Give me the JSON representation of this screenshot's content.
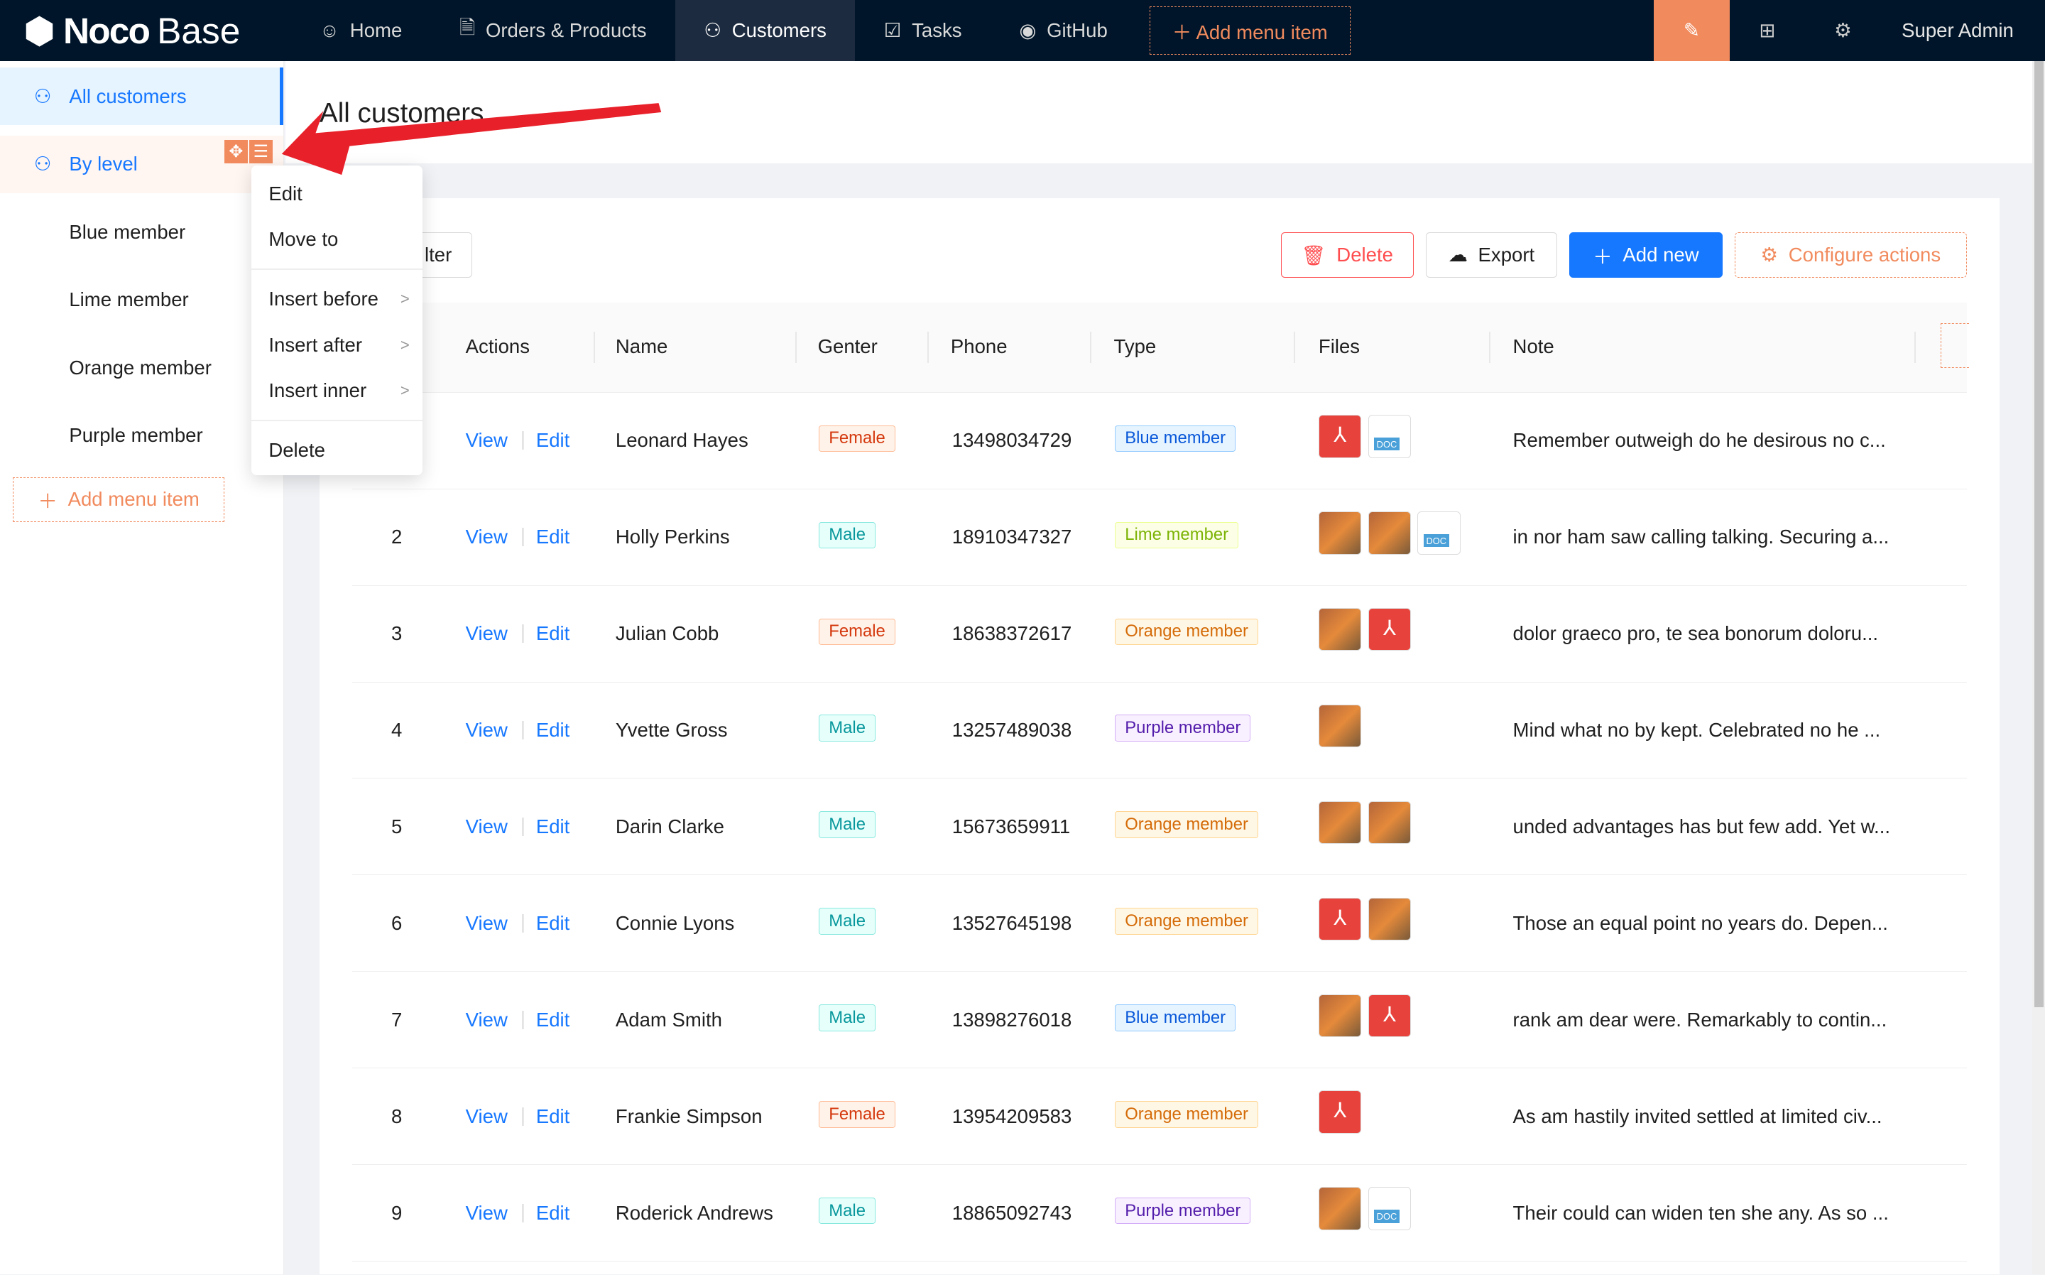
{
  "header": {
    "logo": {
      "bold": "Noco",
      "light": "Base"
    },
    "nav": [
      {
        "label": "Home",
        "icon": "smile-icon"
      },
      {
        "label": "Orders & Products",
        "icon": "file-check-icon"
      },
      {
        "label": "Customers",
        "icon": "user-icon",
        "active": true
      },
      {
        "label": "Tasks",
        "icon": "checkbox-icon"
      },
      {
        "label": "GitHub",
        "icon": "github-icon"
      }
    ],
    "add_menu_item": "Add menu item",
    "user": "Super Admin"
  },
  "sidebar": {
    "items": [
      {
        "label": "All customers",
        "active": true
      },
      {
        "label": "By level"
      },
      {
        "label": "Blue member"
      },
      {
        "label": "Lime member"
      },
      {
        "label": "Orange member"
      },
      {
        "label": "Purple member"
      }
    ],
    "add_menu_item": "Add menu item"
  },
  "context_menu": {
    "items": [
      "Edit",
      "Move to",
      "Insert before",
      "Insert after",
      "Insert inner",
      "Delete"
    ]
  },
  "page": {
    "title": "All customers"
  },
  "toolbar": {
    "filter": "lter",
    "delete": "Delete",
    "export": "Export",
    "add_new": "Add new",
    "configure": "Configure actions"
  },
  "table": {
    "columns": [
      "Actions",
      "Name",
      "Genter",
      "Phone",
      "Type",
      "Files",
      "Note"
    ],
    "view": "View",
    "edit": "Edit",
    "rows": [
      {
        "no": "",
        "name": "Leonard Hayes",
        "gender": "Female",
        "phone": "13498034729",
        "type": "Blue member",
        "files": [
          "pdf",
          "doc"
        ],
        "note": "Remember outweigh do he desirous no c..."
      },
      {
        "no": "2",
        "name": "Holly Perkins",
        "gender": "Male",
        "phone": "18910347327",
        "type": "Lime member",
        "files": [
          "img",
          "img",
          "doc"
        ],
        "note": "in nor ham saw calling talking. Securing a..."
      },
      {
        "no": "3",
        "name": "Julian Cobb",
        "gender": "Female",
        "phone": "18638372617",
        "type": "Orange member",
        "files": [
          "img",
          "pdf"
        ],
        "note": "dolor graeco pro, te sea bonorum doloru..."
      },
      {
        "no": "4",
        "name": "Yvette Gross",
        "gender": "Male",
        "phone": "13257489038",
        "type": "Purple member",
        "files": [
          "img"
        ],
        "note": "Mind what no by kept. Celebrated no he ..."
      },
      {
        "no": "5",
        "name": "Darin Clarke",
        "gender": "Male",
        "phone": "15673659911",
        "type": "Orange member",
        "files": [
          "img",
          "img"
        ],
        "note": "unded advantages has but few add. Yet w..."
      },
      {
        "no": "6",
        "name": "Connie Lyons",
        "gender": "Male",
        "phone": "13527645198",
        "type": "Orange member",
        "files": [
          "pdf",
          "img"
        ],
        "note": "Those an equal point no years do. Depen..."
      },
      {
        "no": "7",
        "name": "Adam Smith",
        "gender": "Male",
        "phone": "13898276018",
        "type": "Blue member",
        "files": [
          "img",
          "pdf"
        ],
        "note": "rank am dear were. Remarkably to contin..."
      },
      {
        "no": "8",
        "name": "Frankie Simpson",
        "gender": "Female",
        "phone": "13954209583",
        "type": "Orange member",
        "files": [
          "pdf"
        ],
        "note": "As am hastily invited settled at limited civ..."
      },
      {
        "no": "9",
        "name": "Roderick Andrews",
        "gender": "Male",
        "phone": "18865092743",
        "type": "Purple member",
        "files": [
          "img",
          "doc"
        ],
        "note": "Their could can widen ten she any. As so ..."
      }
    ]
  },
  "colors": {
    "accent": "#1677ff",
    "design_orange": "#f18b5e",
    "header_bg": "#001529",
    "annotation_arrow": "#e8202a",
    "tags": {
      "Female": [
        "#fff2e8",
        "#ffbb96",
        "#d4380d"
      ],
      "Male": [
        "#e6fffb",
        "#87e8de",
        "#08979c"
      ],
      "Blue member": [
        "#e6f4ff",
        "#91caff",
        "#0958d9"
      ],
      "Lime member": [
        "#fcffe6",
        "#eaff8f",
        "#7cb305"
      ],
      "Orange member": [
        "#fff7e6",
        "#ffd591",
        "#d46b08"
      ],
      "Purple member": [
        "#f9f0ff",
        "#d3adf7",
        "#531dab"
      ]
    }
  }
}
